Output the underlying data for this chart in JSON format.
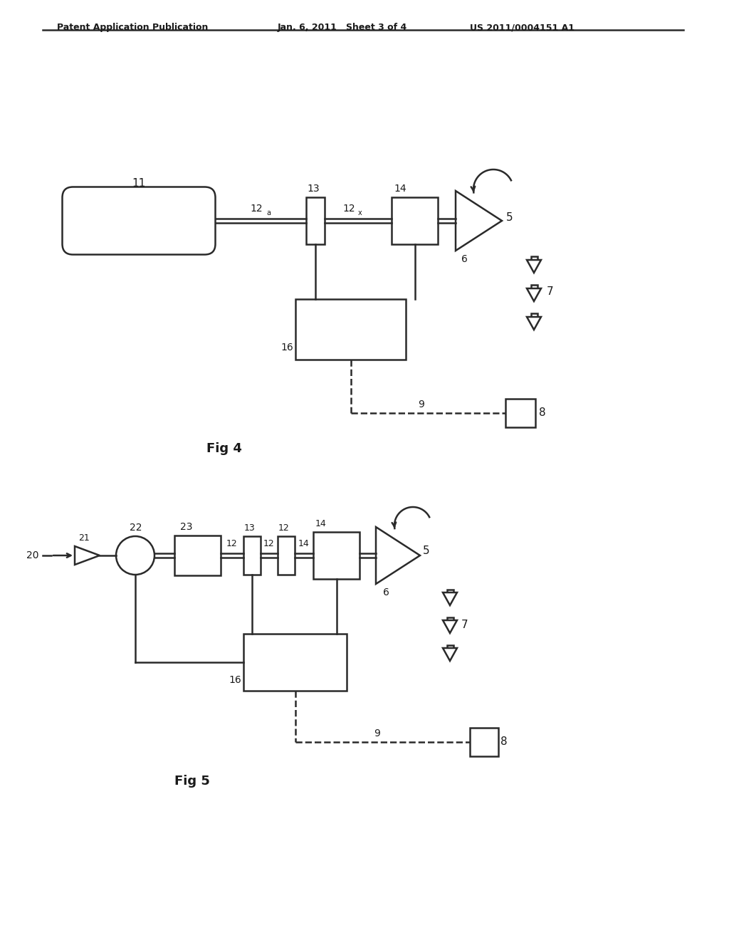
{
  "background_color": "#ffffff",
  "header_left": "Patent Application Publication",
  "header_mid": "Jan. 6, 2011   Sheet 3 of 4",
  "header_right": "US 2011/0004151 A1",
  "fig4_label": "Fig 4",
  "fig5_label": "Fig 5",
  "line_color": "#2a2a2a",
  "text_color": "#1a1a1a"
}
